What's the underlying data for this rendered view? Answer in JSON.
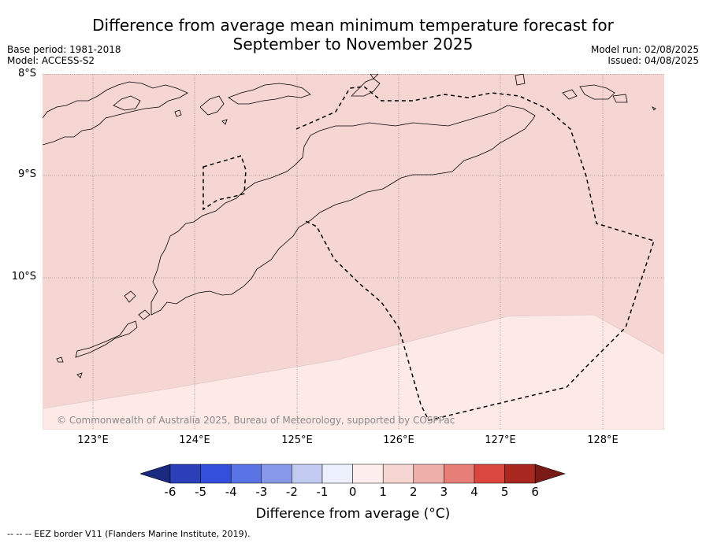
{
  "header": {
    "title_line1": "Difference from average mean minimum temperature forecast for",
    "title_line2": "September to November 2025",
    "base_period": "Base period: 1981-2018",
    "model": "Model: ACCESS-S2",
    "model_run": "Model run: 02/08/2025",
    "issued": "Issued: 04/08/2025"
  },
  "map": {
    "lat_labels": [
      "8°S",
      "9°S",
      "10°S"
    ],
    "lon_labels": [
      "123°E",
      "124°E",
      "125°E",
      "126°E",
      "127°E",
      "128°E"
    ],
    "copyright": "© Commonwealth of Australia 2025, Bureau of Meteorology, supported by COSPPac",
    "colors": {
      "warm_0_1": "#fde9e6",
      "warm_1_2": "#f6d6d3",
      "land_outline": "#000000",
      "eez": "#000000",
      "grid": "#777777"
    }
  },
  "colorbar": {
    "ticks": [
      "-6",
      "-5",
      "-4",
      "-3",
      "-2",
      "-1",
      "0",
      "1",
      "2",
      "3",
      "4",
      "5",
      "6"
    ],
    "colors": [
      "#1a2a80",
      "#2a3fb8",
      "#3350dd",
      "#5a73e4",
      "#8898e9",
      "#c3caf2",
      "#eceffc",
      "#fdeeed",
      "#f6d6d3",
      "#eeaeaa",
      "#e57f78",
      "#d9473f",
      "#a8271f",
      "#7a1a17"
    ],
    "label": "Difference from average (°C)"
  },
  "legend": {
    "eez_note": "--  --  -- EEZ border V11 (Flanders Marine Institute, 2019)."
  }
}
